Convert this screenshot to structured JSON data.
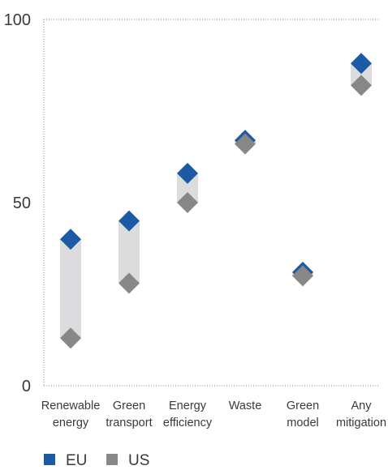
{
  "chart_data": {
    "type": "dot-range",
    "categories": [
      [
        "Renewable",
        "energy"
      ],
      [
        "Green",
        "transport"
      ],
      [
        "Energy",
        "efficiency"
      ],
      [
        "Waste"
      ],
      [
        "Green",
        "model"
      ],
      [
        "Any",
        "mitigation"
      ]
    ],
    "series": [
      {
        "name": "EU",
        "values": [
          40,
          45,
          58,
          67,
          31,
          88
        ],
        "color": "#1c5aa6"
      },
      {
        "name": "US",
        "values": [
          13,
          28,
          50,
          66,
          30,
          82
        ],
        "color": "#878787"
      }
    ],
    "range_color": "#dcdcde",
    "ylim": [
      0,
      100
    ],
    "yticks": [
      0,
      50,
      100
    ],
    "grid": false,
    "top_border": "dotted",
    "legend_position": "bottom-left",
    "title": "",
    "xlabel": "",
    "ylabel": ""
  }
}
